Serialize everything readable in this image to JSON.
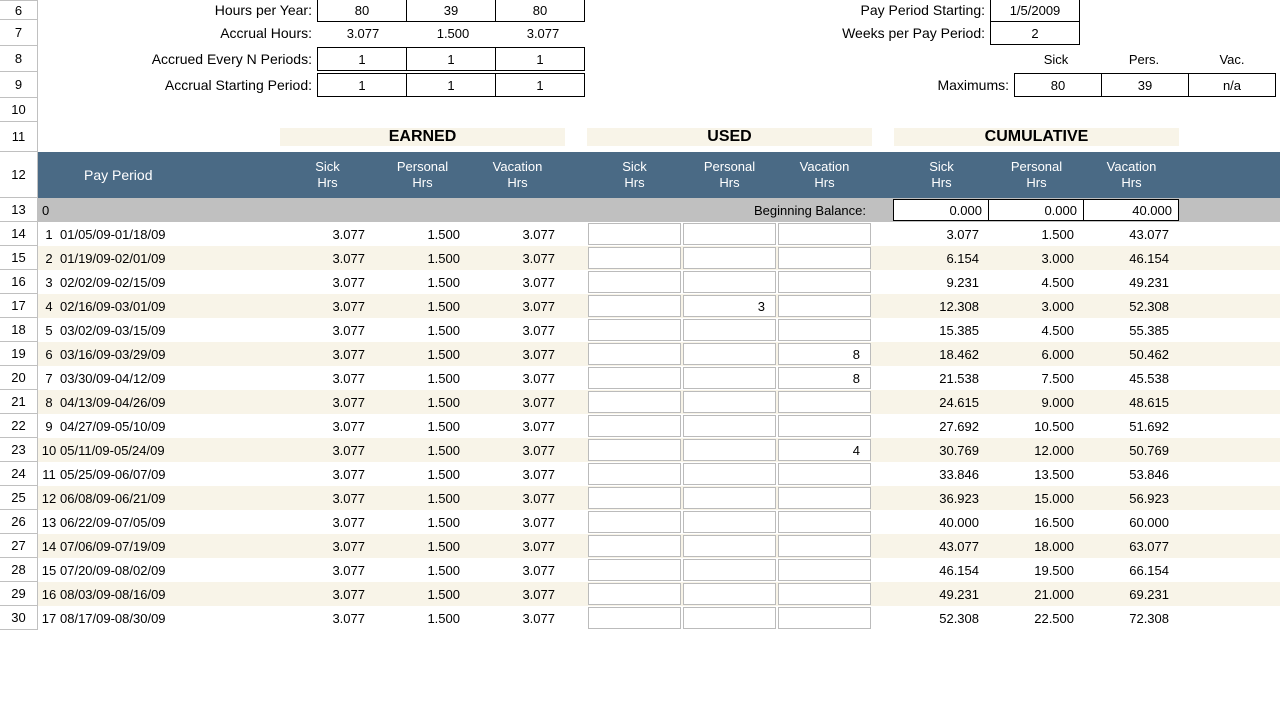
{
  "colors": {
    "row_alt": "#f8f4e8",
    "header_bg": "#4a6a85",
    "header_fg": "#ffffff",
    "grid_border": "#c0c0c0",
    "input_border": "#000000",
    "bb_bg": "#c0c0c0"
  },
  "row_numbers": [
    6,
    7,
    8,
    9,
    10,
    11,
    12,
    13,
    14,
    15,
    16,
    17,
    18,
    19,
    20,
    21,
    22,
    23,
    24,
    25,
    26,
    27,
    28,
    29,
    30
  ],
  "top": {
    "hours_per_year": {
      "label": "Hours per Year:",
      "vals": [
        "80",
        "39",
        "80"
      ]
    },
    "accrual_hours": {
      "label": "Accrual Hours:",
      "vals": [
        "3.077",
        "1.500",
        "3.077"
      ]
    },
    "every_n": {
      "label": "Accrued Every N Periods:",
      "vals": [
        "1",
        "1",
        "1"
      ]
    },
    "start_period": {
      "label": "Accrual Starting Period:",
      "vals": [
        "1",
        "1",
        "1"
      ]
    },
    "pay_period_start": {
      "label": "Pay Period Starting:",
      "val": "1/5/2009"
    },
    "weeks_per": {
      "label": "Weeks per Pay Period:",
      "val": "2"
    },
    "max_header": [
      "Sick",
      "Pers.",
      "Vac."
    ],
    "maximums": {
      "label": "Maximums:",
      "vals": [
        "80",
        "39",
        "n/a"
      ]
    }
  },
  "sections": {
    "earned": "EARNED",
    "used": "USED",
    "cum": "CUMULATIVE"
  },
  "columns": {
    "pay_period": "Pay Period",
    "earned": [
      "Sick Hrs",
      "Personal Hrs",
      "Vacation Hrs"
    ],
    "used": [
      "Sick Hrs",
      "Personal Hrs",
      "Vacation Hrs"
    ],
    "cum": [
      "Sick Hrs",
      "Personal Hrs",
      "Vacation Hrs"
    ]
  },
  "beginning_balance": {
    "label": "Beginning Balance:",
    "idx": "0",
    "vals": [
      "0.000",
      "0.000",
      "40.000"
    ]
  },
  "rows": [
    {
      "n": 1,
      "period": "01/05/09-01/18/09",
      "e": [
        "3.077",
        "1.500",
        "3.077"
      ],
      "u": [
        "",
        "",
        ""
      ],
      "c": [
        "3.077",
        "1.500",
        "43.077"
      ]
    },
    {
      "n": 2,
      "period": "01/19/09-02/01/09",
      "e": [
        "3.077",
        "1.500",
        "3.077"
      ],
      "u": [
        "",
        "",
        ""
      ],
      "c": [
        "6.154",
        "3.000",
        "46.154"
      ]
    },
    {
      "n": 3,
      "period": "02/02/09-02/15/09",
      "e": [
        "3.077",
        "1.500",
        "3.077"
      ],
      "u": [
        "",
        "",
        ""
      ],
      "c": [
        "9.231",
        "4.500",
        "49.231"
      ]
    },
    {
      "n": 4,
      "period": "02/16/09-03/01/09",
      "e": [
        "3.077",
        "1.500",
        "3.077"
      ],
      "u": [
        "",
        "3",
        ""
      ],
      "c": [
        "12.308",
        "3.000",
        "52.308"
      ]
    },
    {
      "n": 5,
      "period": "03/02/09-03/15/09",
      "e": [
        "3.077",
        "1.500",
        "3.077"
      ],
      "u": [
        "",
        "",
        ""
      ],
      "c": [
        "15.385",
        "4.500",
        "55.385"
      ]
    },
    {
      "n": 6,
      "period": "03/16/09-03/29/09",
      "e": [
        "3.077",
        "1.500",
        "3.077"
      ],
      "u": [
        "",
        "",
        "8"
      ],
      "c": [
        "18.462",
        "6.000",
        "50.462"
      ]
    },
    {
      "n": 7,
      "period": "03/30/09-04/12/09",
      "e": [
        "3.077",
        "1.500",
        "3.077"
      ],
      "u": [
        "",
        "",
        "8"
      ],
      "c": [
        "21.538",
        "7.500",
        "45.538"
      ]
    },
    {
      "n": 8,
      "period": "04/13/09-04/26/09",
      "e": [
        "3.077",
        "1.500",
        "3.077"
      ],
      "u": [
        "",
        "",
        ""
      ],
      "c": [
        "24.615",
        "9.000",
        "48.615"
      ]
    },
    {
      "n": 9,
      "period": "04/27/09-05/10/09",
      "e": [
        "3.077",
        "1.500",
        "3.077"
      ],
      "u": [
        "",
        "",
        ""
      ],
      "c": [
        "27.692",
        "10.500",
        "51.692"
      ]
    },
    {
      "n": 10,
      "period": "05/11/09-05/24/09",
      "e": [
        "3.077",
        "1.500",
        "3.077"
      ],
      "u": [
        "",
        "",
        "4"
      ],
      "c": [
        "30.769",
        "12.000",
        "50.769"
      ]
    },
    {
      "n": 11,
      "period": "05/25/09-06/07/09",
      "e": [
        "3.077",
        "1.500",
        "3.077"
      ],
      "u": [
        "",
        "",
        ""
      ],
      "c": [
        "33.846",
        "13.500",
        "53.846"
      ]
    },
    {
      "n": 12,
      "period": "06/08/09-06/21/09",
      "e": [
        "3.077",
        "1.500",
        "3.077"
      ],
      "u": [
        "",
        "",
        ""
      ],
      "c": [
        "36.923",
        "15.000",
        "56.923"
      ]
    },
    {
      "n": 13,
      "period": "06/22/09-07/05/09",
      "e": [
        "3.077",
        "1.500",
        "3.077"
      ],
      "u": [
        "",
        "",
        ""
      ],
      "c": [
        "40.000",
        "16.500",
        "60.000"
      ]
    },
    {
      "n": 14,
      "period": "07/06/09-07/19/09",
      "e": [
        "3.077",
        "1.500",
        "3.077"
      ],
      "u": [
        "",
        "",
        ""
      ],
      "c": [
        "43.077",
        "18.000",
        "63.077"
      ]
    },
    {
      "n": 15,
      "period": "07/20/09-08/02/09",
      "e": [
        "3.077",
        "1.500",
        "3.077"
      ],
      "u": [
        "",
        "",
        ""
      ],
      "c": [
        "46.154",
        "19.500",
        "66.154"
      ]
    },
    {
      "n": 16,
      "period": "08/03/09-08/16/09",
      "e": [
        "3.077",
        "1.500",
        "3.077"
      ],
      "u": [
        "",
        "",
        ""
      ],
      "c": [
        "49.231",
        "21.000",
        "69.231"
      ]
    },
    {
      "n": 17,
      "period": "08/17/09-08/30/09",
      "e": [
        "3.077",
        "1.500",
        "3.077"
      ],
      "u": [
        "",
        "",
        ""
      ],
      "c": [
        "52.308",
        "22.500",
        "72.308"
      ]
    }
  ]
}
